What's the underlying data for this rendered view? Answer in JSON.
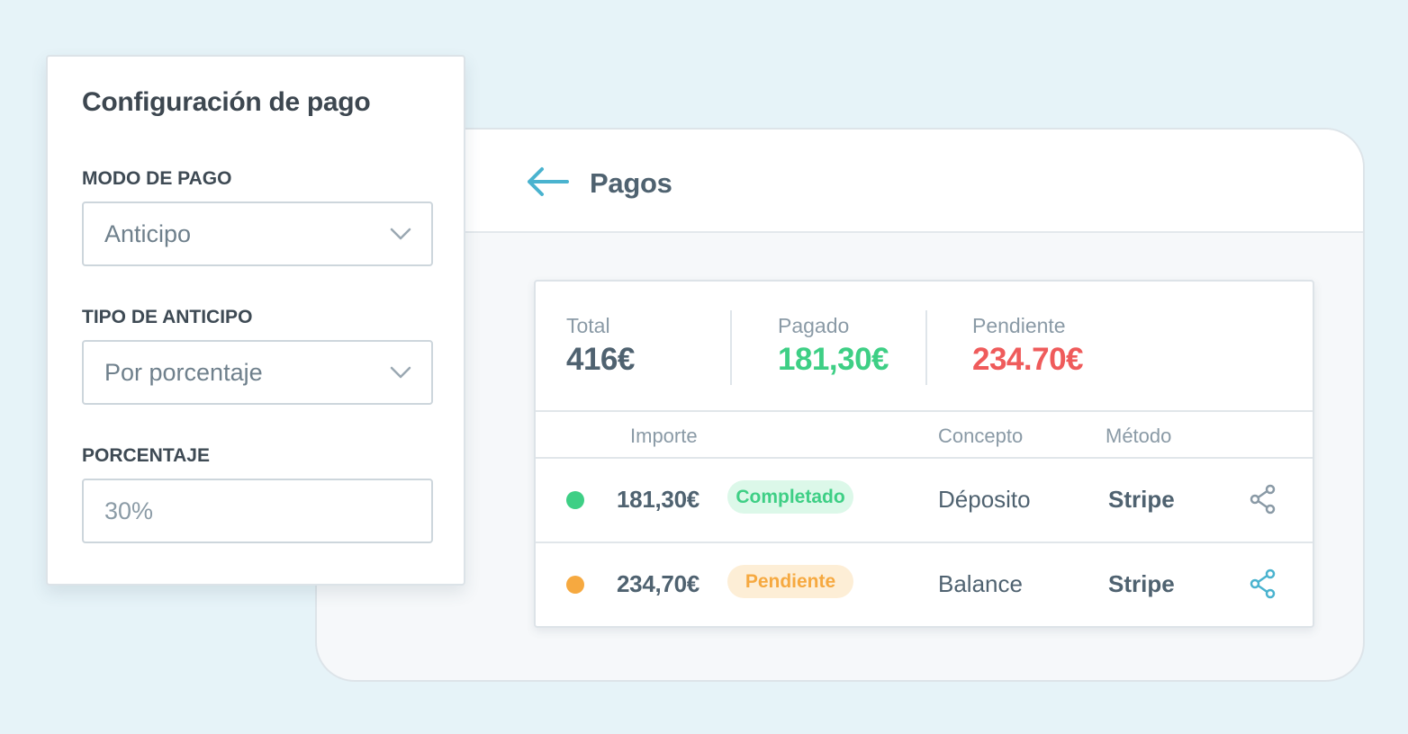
{
  "config": {
    "title": "Configuración de pago",
    "modo_label": "MODO DE PAGO",
    "modo_value": "Anticipo",
    "tipo_label": "TIPO DE ANTICIPO",
    "tipo_value": "Por porcentaje",
    "porcentaje_label": "PORCENTAJE",
    "porcentaje_value": "30%"
  },
  "pagos": {
    "title": "Pagos",
    "summary": {
      "total_label": "Total",
      "total_value": "416€",
      "pagado_label": "Pagado",
      "pagado_value": "181,30€",
      "pendiente_label": "Pendiente",
      "pendiente_value": "234.70€"
    },
    "columns": {
      "importe": "Importe",
      "concepto": "Concepto",
      "metodo": "Método"
    },
    "rows": [
      {
        "amount": "181,30€",
        "status": "Completado",
        "concept": "Déposito",
        "method": "Stripe"
      },
      {
        "amount": "234,70€",
        "status": "Pendiente",
        "concept": "Balance",
        "method": "Stripe"
      }
    ]
  },
  "colors": {
    "accent": "#4ab3cf",
    "paid": "#3ecf85",
    "pending_amount": "#ef5b5b",
    "pending_status": "#f6a940",
    "text": "#4f6270"
  }
}
